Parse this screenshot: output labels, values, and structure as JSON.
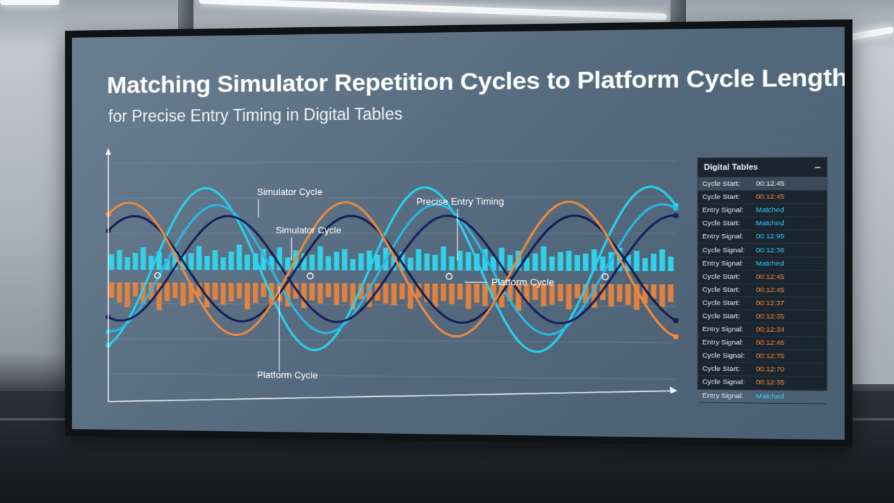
{
  "scene": {
    "light_color": "#f6f8fa"
  },
  "screen": {
    "title": "Matching Simulator Repetition Cycles to Platform Cycle Lengths",
    "subtitle": "for Precise Entry Timing in Digital Tables"
  },
  "chart_data": {
    "type": "line",
    "x_range": [
      0,
      1
    ],
    "y_range": [
      -1.2,
      1.2
    ],
    "grid": true,
    "axes": {
      "x_arrow": true,
      "y_arrow": true,
      "tick_labels": false
    },
    "series": [
      {
        "key": "sim_bright",
        "color": "#27d4ef",
        "period": 0.39,
        "phase": 0.08,
        "amplitude": 0.95
      },
      {
        "key": "sim_light",
        "color": "#2ab8e6",
        "period": 0.39,
        "phase": 0.1,
        "amplitude": 0.75
      },
      {
        "key": "sim_dark",
        "color": "#161f5a",
        "period": 0.39,
        "phase": 0.12,
        "amplitude": 0.62
      },
      {
        "key": "platform_dark",
        "color": "#141c50",
        "period": 0.39,
        "phase": -0.05,
        "amplitude": 0.62
      },
      {
        "key": "platform_orange",
        "color": "#f08a3c",
        "period": 0.39,
        "phase": -0.06,
        "amplitude": 0.78
      }
    ],
    "bars": {
      "simulator_color": "#2fd8ef",
      "platform_color": "#f0843a",
      "simulator_heights": [
        0.55,
        0.7,
        0.45,
        0.6,
        0.8,
        0.5,
        0.65,
        0.4,
        0.75,
        0.55,
        0.6,
        0.85,
        0.5,
        0.7,
        0.45,
        0.65,
        0.9,
        0.55,
        0.6,
        0.75,
        0.5,
        0.8,
        0.45,
        0.7,
        0.6,
        0.55,
        0.85,
        0.5,
        0.65,
        0.75,
        0.4,
        0.6,
        0.7,
        0.55,
        0.8,
        0.5,
        0.65,
        0.45,
        0.75,
        0.6,
        0.55,
        0.85,
        0.5,
        0.7,
        0.65,
        0.6,
        0.75,
        0.5,
        0.8,
        0.55,
        0.7,
        0.45,
        0.6,
        0.85,
        0.5,
        0.65,
        0.7,
        0.55,
        0.6,
        0.75,
        0.5,
        0.65,
        0.8,
        0.55,
        0.7,
        0.45,
        0.6,
        0.75,
        0.5
      ],
      "platform_heights": [
        0.5,
        0.65,
        0.8,
        0.45,
        0.7,
        0.55,
        0.9,
        0.6,
        0.5,
        0.75,
        0.65,
        0.45,
        0.8,
        0.55,
        0.7,
        0.6,
        0.5,
        0.85,
        0.65,
        0.45,
        0.7,
        0.6,
        0.75,
        0.5,
        0.8,
        0.55,
        0.65,
        0.45,
        0.7,
        0.6,
        0.85,
        0.5,
        0.75,
        0.55,
        0.65,
        0.7,
        0.5,
        0.8,
        0.45,
        0.6,
        0.75,
        0.55,
        0.65,
        0.5,
        0.8,
        0.6,
        0.7,
        0.45,
        0.75,
        0.55,
        0.85,
        0.6,
        0.5,
        0.7,
        0.65,
        0.55,
        0.8,
        0.45,
        0.6,
        0.75,
        0.5,
        0.7,
        0.55,
        0.65,
        0.8,
        0.6,
        0.45,
        0.7,
        0.55
      ]
    },
    "annotations": [
      {
        "key": "simulator_cycle_1",
        "text": "Simulator Cycle"
      },
      {
        "key": "simulator_cycle_2",
        "text": "Simulator Cycle"
      },
      {
        "key": "precise_entry_timing",
        "text": "Precise Entry Timing"
      },
      {
        "key": "platform_cycle_1",
        "text": "Platform Cycle"
      },
      {
        "key": "platform_cycle_2",
        "text": "Platform Cycle"
      }
    ]
  },
  "table_panel": {
    "title": "Digital Tables",
    "collapse_symbol": "–",
    "label_color": "#e3e9ef",
    "rows": [
      {
        "label": "Cycle Start:",
        "value": "00:12:45",
        "color": "#e9eef3"
      },
      {
        "label": "Cycle Start:",
        "value": "00:12:45",
        "color": "#f08a3c"
      },
      {
        "label": "Entry Signal:",
        "value": "Matched",
        "color": "#2fd3ee"
      },
      {
        "label": "Cycle Start:",
        "value": "Matched",
        "color": "#2fd3ee"
      },
      {
        "label": "Entry Signal:",
        "value": "00:12:95",
        "color": "#2fd3ee"
      },
      {
        "label": "Cycle Signal:",
        "value": "00:12:36",
        "color": "#2fd3ee"
      },
      {
        "label": "Entry Signal:",
        "value": "Matched",
        "color": "#2fd3ee"
      },
      {
        "label": "Cycle Start:",
        "value": "00:12:45",
        "color": "#f08a3c"
      },
      {
        "label": "Cycle Start:",
        "value": "00:12:45",
        "color": "#f08a3c"
      },
      {
        "label": "Cycle Start:",
        "value": "00:12:37",
        "color": "#f08a3c"
      },
      {
        "label": "Cycle Start:",
        "value": "00:12:35",
        "color": "#f08a3c"
      },
      {
        "label": "Entry Signal:",
        "value": "00:12:34",
        "color": "#f08a3c"
      },
      {
        "label": "Entry Signal:",
        "value": "00:12:46",
        "color": "#f08a3c"
      },
      {
        "label": "Cycle Signal:",
        "value": "00:12:75",
        "color": "#f08a3c"
      },
      {
        "label": "Cycle Start:",
        "value": "00:12:70",
        "color": "#f08a3c"
      },
      {
        "label": "Cycle Signal:",
        "value": "00:12:35",
        "color": "#f08a3c"
      },
      {
        "label": "Entry Signal:",
        "value": "Matched",
        "color": "#2fd3ee"
      }
    ]
  }
}
